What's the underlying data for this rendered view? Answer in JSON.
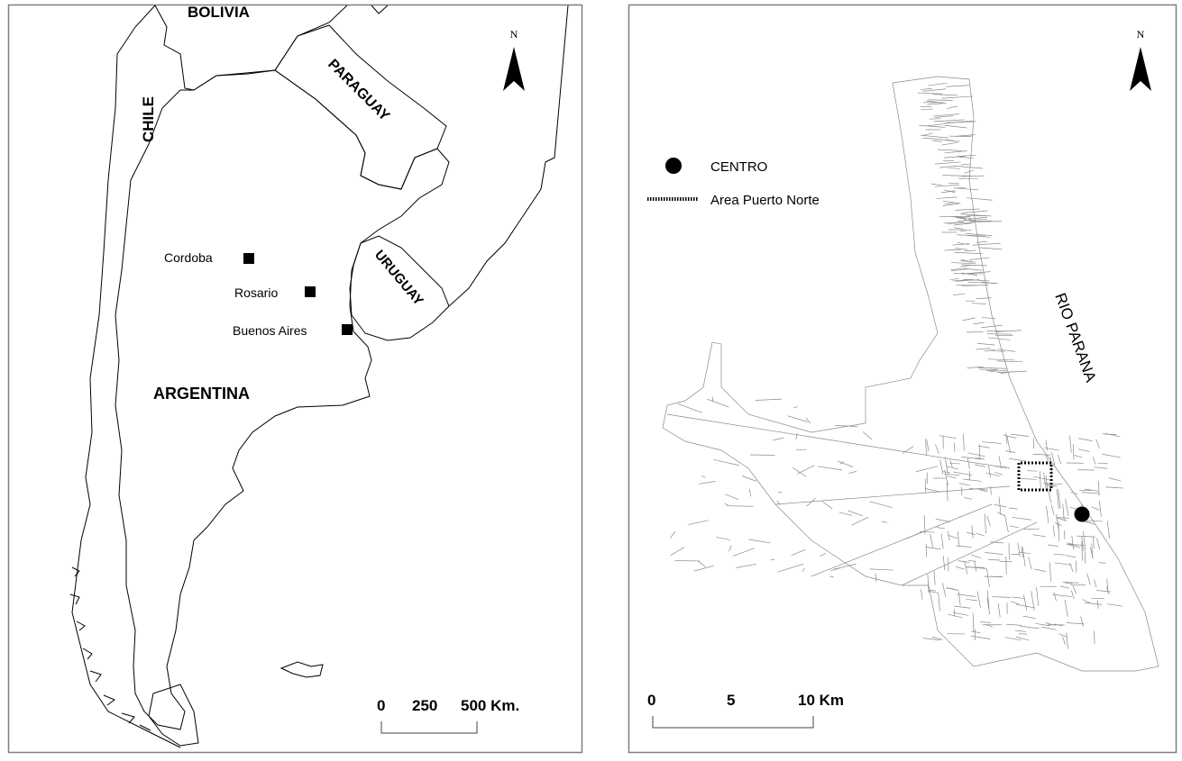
{
  "left_map": {
    "countries": {
      "bolivia": "BOLIVIA",
      "paraguay": "PARAGUAY",
      "chile": "CHILE",
      "uruguay": "URUGUAY",
      "argentina": "ARGENTINA"
    },
    "cities": [
      {
        "name": "Cordoba"
      },
      {
        "name": "Rosario"
      },
      {
        "name": "Buenos Aires"
      }
    ],
    "north_label": "N",
    "scale": {
      "ticks": [
        "0",
        "250",
        "500 Km."
      ]
    }
  },
  "right_map": {
    "north_label": "N",
    "legend": {
      "centro": "CENTRO",
      "puerto_norte": "Area Puerto Norte"
    },
    "river_label": "RIO PARANA",
    "scale": {
      "ticks": [
        "0",
        "5",
        "10 Km"
      ]
    }
  },
  "colors": {
    "ink": "#000000",
    "street": "#8a8a8a",
    "frame": "#7f7f7f"
  }
}
